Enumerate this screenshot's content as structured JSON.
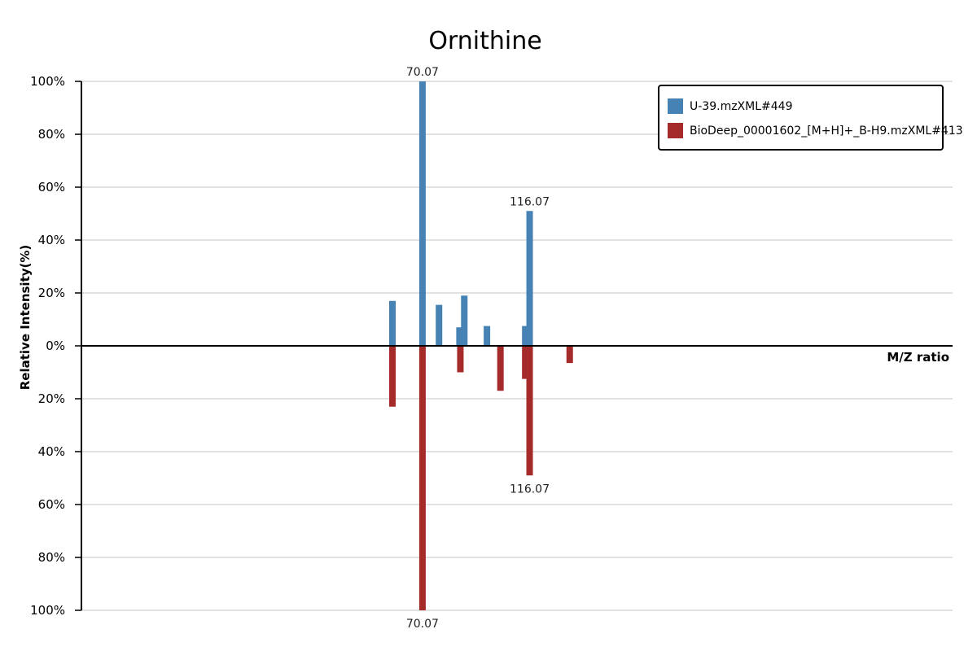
{
  "chart_data": {
    "type": "bar",
    "title": "Ornithine",
    "xlabel": "M/Z ratio",
    "ylabel": "Relative Intensity(%)",
    "x_range": [
      0,
      200
    ],
    "ylim_top": [
      0,
      100
    ],
    "ylim_bottom": [
      0,
      100
    ],
    "y_ticks": [
      "100%",
      "80%",
      "60%",
      "40%",
      "20%",
      "0%",
      "20%",
      "40%",
      "60%",
      "80%",
      "100%"
    ],
    "grid": true,
    "legend_position": "top-right",
    "series": [
      {
        "name": "U-39.mzXML#449",
        "color": "#4682b4",
        "direction": "up",
        "mz": [
          71.4,
          78.3,
          82.1,
          86.8,
          87.9,
          93.1,
          101.9,
          102.9
        ],
        "intensity": [
          17,
          100,
          15.5,
          7,
          19,
          7.5,
          7.5,
          51
        ],
        "labels": [
          {
            "mz": 78.3,
            "text": "70.07"
          },
          {
            "mz": 102.9,
            "text": "116.07"
          }
        ]
      },
      {
        "name": "BioDeep_00001602_[M+H]+_B-H9.mzXML#413",
        "color": "#a52a2a",
        "direction": "down",
        "mz": [
          71.4,
          78.3,
          87.0,
          96.2,
          101.9,
          102.9,
          112.1
        ],
        "intensity": [
          23,
          100,
          10,
          17,
          12.5,
          49,
          6.5
        ],
        "labels": [
          {
            "mz": 78.3,
            "text": "70.07"
          },
          {
            "mz": 102.9,
            "text": "116.07"
          }
        ]
      }
    ]
  }
}
